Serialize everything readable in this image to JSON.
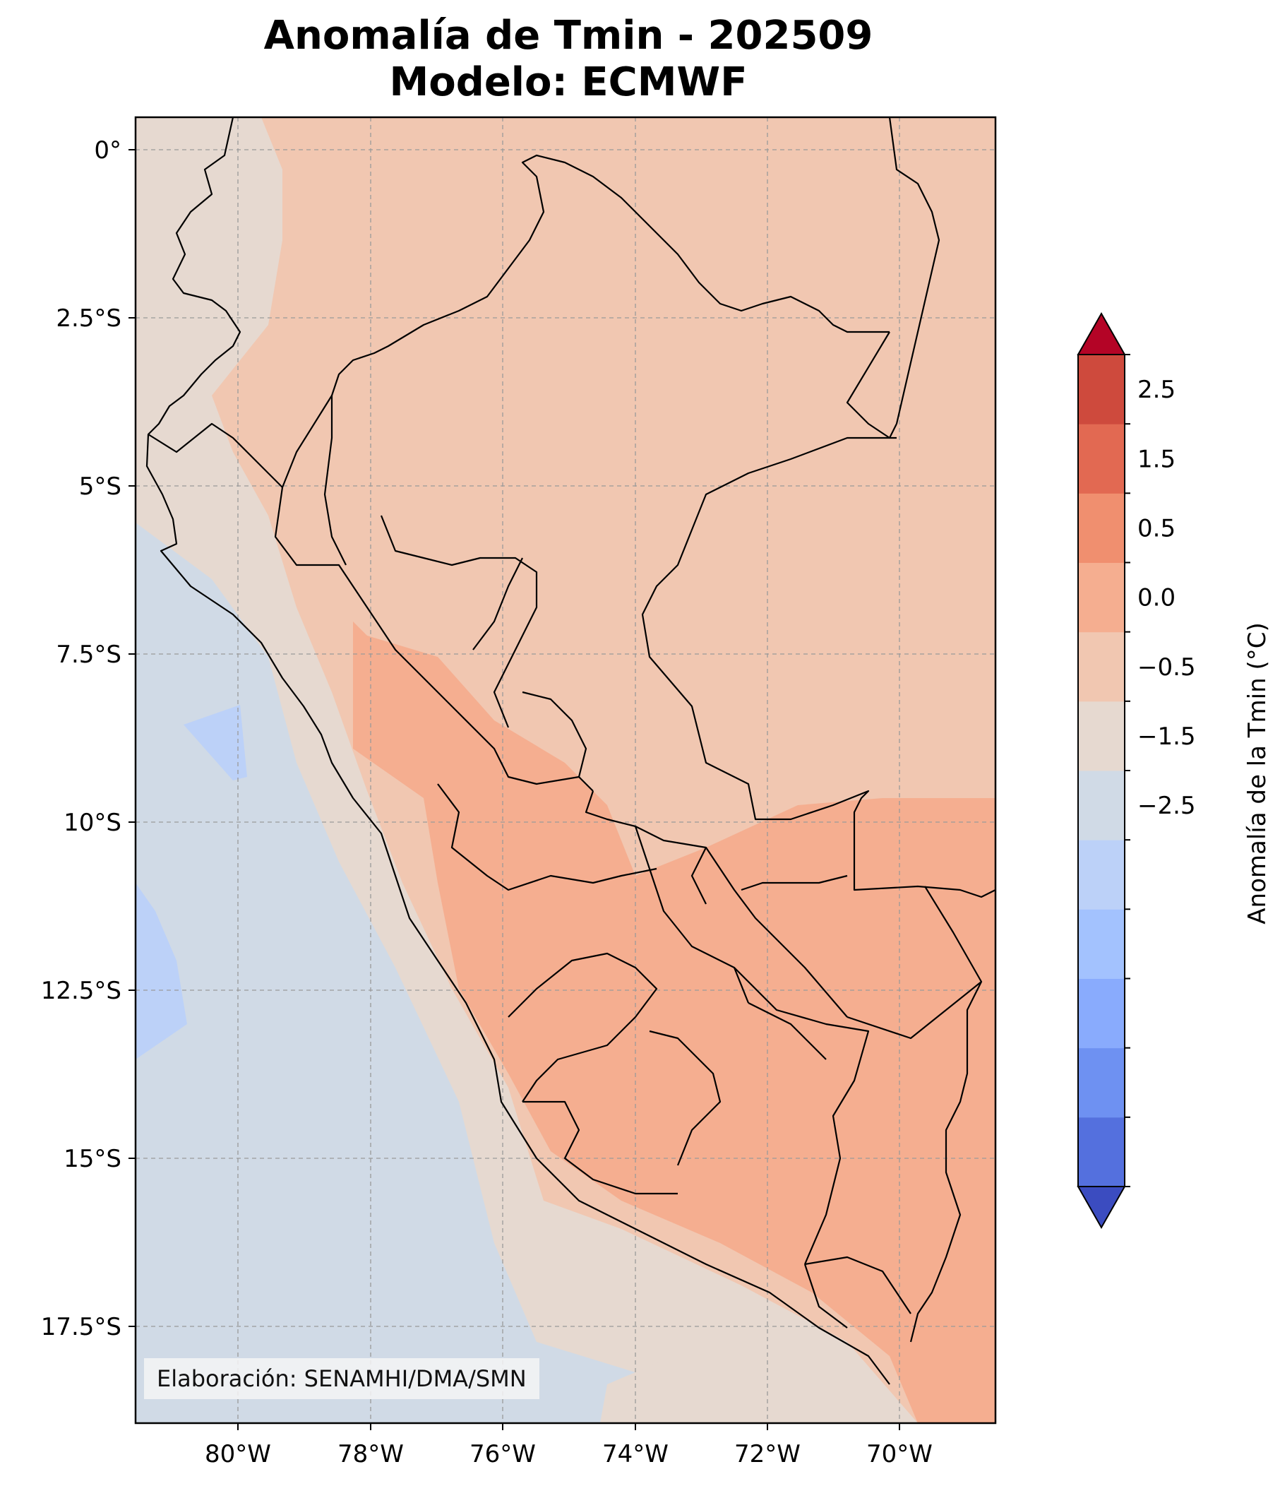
{
  "title": {
    "line1": "Anomalía de Tmin - 202509",
    "line2": "Modelo: ECMWF"
  },
  "map": {
    "lon_ticks": [
      "80°W",
      "78°W",
      "76°W",
      "74°W",
      "72°W",
      "70°W"
    ],
    "lat_ticks": [
      "0°",
      "2.5°S",
      "5°S",
      "7.5°S",
      "10°S",
      "12.5°S",
      "15°S",
      "17.5°S"
    ],
    "credit": "Elaboración: SENAMHI/DMA/SMN"
  },
  "colorbar": {
    "label": "Anomalía de la Tmin (°C)",
    "tick_labels": [
      "2.5",
      "1.5",
      "0.5",
      "0.0",
      "−0.5",
      "−1.5",
      "−2.5"
    ],
    "colors": [
      "#3b4cc0",
      "#5470de",
      "#6e91f2",
      "#89abfd",
      "#a3c2fe",
      "#bcd1f8",
      "#d0dae6",
      "#e6d9d0",
      "#f1c7b1",
      "#f5ae90",
      "#f08f6f",
      "#e26952",
      "#ce4a3d",
      "#b40426"
    ]
  }
}
